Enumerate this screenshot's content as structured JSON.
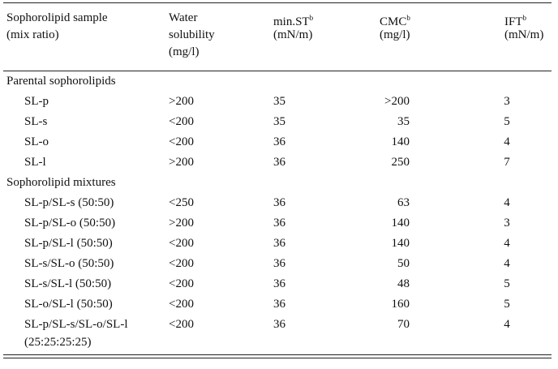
{
  "table": {
    "header": [
      {
        "lines": [
          "Sophorolipid sample",
          "(mix ratio)"
        ]
      },
      {
        "lines": [
          "Water",
          "solubility",
          "(mg/l)"
        ]
      },
      {
        "lines": [
          "min.ST",
          "(mN/m)"
        ],
        "sup": "b"
      },
      {
        "lines": [
          "CMC",
          "(mg/l)"
        ],
        "sup": "b"
      },
      {
        "lines": [
          "IFT",
          "(mN/m)"
        ],
        "sup": "b"
      }
    ],
    "sections": [
      {
        "title": "Parental sophorolipids",
        "rows": [
          [
            "SL-p",
            ">200",
            35,
            ">200",
            3
          ],
          [
            "SL-s",
            "<200",
            35,
            35,
            5
          ],
          [
            "SL-o",
            "<200",
            36,
            140,
            4
          ],
          [
            "SL-l",
            ">200",
            36,
            250,
            7
          ]
        ]
      },
      {
        "title": "Sophorolipid mixtures",
        "rows": [
          [
            "SL-p/SL-s (50:50)",
            "<250",
            36,
            63,
            4
          ],
          [
            "SL-p/SL-o (50:50)",
            ">200",
            36,
            140,
            3
          ],
          [
            "SL-p/SL-l (50:50)",
            "<200",
            36,
            140,
            4
          ],
          [
            "SL-s/SL-o (50:50)",
            "<200",
            36,
            50,
            4
          ],
          [
            "SL-s/SL-l (50:50)",
            "<200",
            36,
            48,
            5
          ],
          [
            "SL-o/SL-l (50:50)",
            "<200",
            36,
            160,
            5
          ],
          [
            [
              "SL-p/SL-s/SL-o/SL-l",
              "(25:25:25:25)"
            ],
            "<200",
            36,
            70,
            4
          ]
        ]
      }
    ]
  }
}
